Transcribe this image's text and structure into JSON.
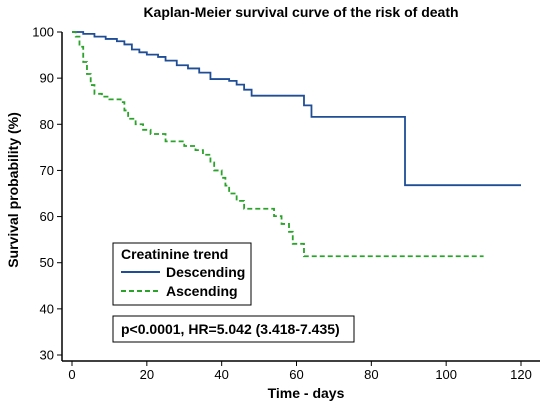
{
  "chart_data": {
    "type": "line",
    "step": true,
    "title": "Kaplan-Meier survival curve of the risk of death",
    "xlabel": "Time - days",
    "ylabel": "Survival probability (%)",
    "xlim": [
      0,
      120
    ],
    "ylim": [
      30,
      100
    ],
    "xticks": [
      0,
      20,
      40,
      60,
      80,
      100,
      120
    ],
    "yticks": [
      30,
      40,
      50,
      60,
      70,
      80,
      90,
      100
    ],
    "grid": false,
    "legend": {
      "title": "Creatinine trend",
      "position": "bottom-left"
    },
    "annotation": "p<0.0001, HR=5.042 (3.418-7.435)",
    "series": [
      {
        "name": "Descending",
        "color": "#1f4e96",
        "dash": "solid",
        "points": [
          [
            0,
            100
          ],
          [
            3,
            99.6
          ],
          [
            6,
            99
          ],
          [
            9,
            98.5
          ],
          [
            12,
            98
          ],
          [
            14,
            97.3
          ],
          [
            16,
            96.2
          ],
          [
            18,
            95.6
          ],
          [
            20,
            95.1
          ],
          [
            23,
            94.6
          ],
          [
            25,
            93.8
          ],
          [
            28,
            92.8
          ],
          [
            31,
            92.1
          ],
          [
            34,
            91.2
          ],
          [
            37,
            89.8
          ],
          [
            42,
            89.4
          ],
          [
            44,
            88.6
          ],
          [
            46,
            87.5
          ],
          [
            48,
            86.2
          ],
          [
            62,
            84.1
          ],
          [
            64,
            81.6
          ],
          [
            89,
            66.8
          ],
          [
            120,
            66.8
          ]
        ]
      },
      {
        "name": "Ascending",
        "color": "#2aa32a",
        "dash": "dashed",
        "points": [
          [
            0,
            100
          ],
          [
            1,
            99
          ],
          [
            2,
            96.8
          ],
          [
            3,
            93.5
          ],
          [
            4,
            90.9
          ],
          [
            5,
            88.5
          ],
          [
            6,
            86.6
          ],
          [
            8,
            86
          ],
          [
            10,
            85.4
          ],
          [
            13,
            84.8
          ],
          [
            14,
            83
          ],
          [
            15,
            81.2
          ],
          [
            17,
            80
          ],
          [
            19,
            78.8
          ],
          [
            21,
            77.9
          ],
          [
            25,
            76.3
          ],
          [
            30,
            75.3
          ],
          [
            33,
            74.4
          ],
          [
            35,
            73.4
          ],
          [
            37,
            71.7
          ],
          [
            38,
            70
          ],
          [
            40,
            68.4
          ],
          [
            41,
            66.7
          ],
          [
            42,
            65
          ],
          [
            44,
            63.4
          ],
          [
            46,
            61.7
          ],
          [
            54,
            60.1
          ],
          [
            56,
            58.4
          ],
          [
            58,
            56.7
          ],
          [
            59,
            54.1
          ],
          [
            62,
            51.4
          ],
          [
            110,
            51.4
          ]
        ]
      }
    ]
  }
}
